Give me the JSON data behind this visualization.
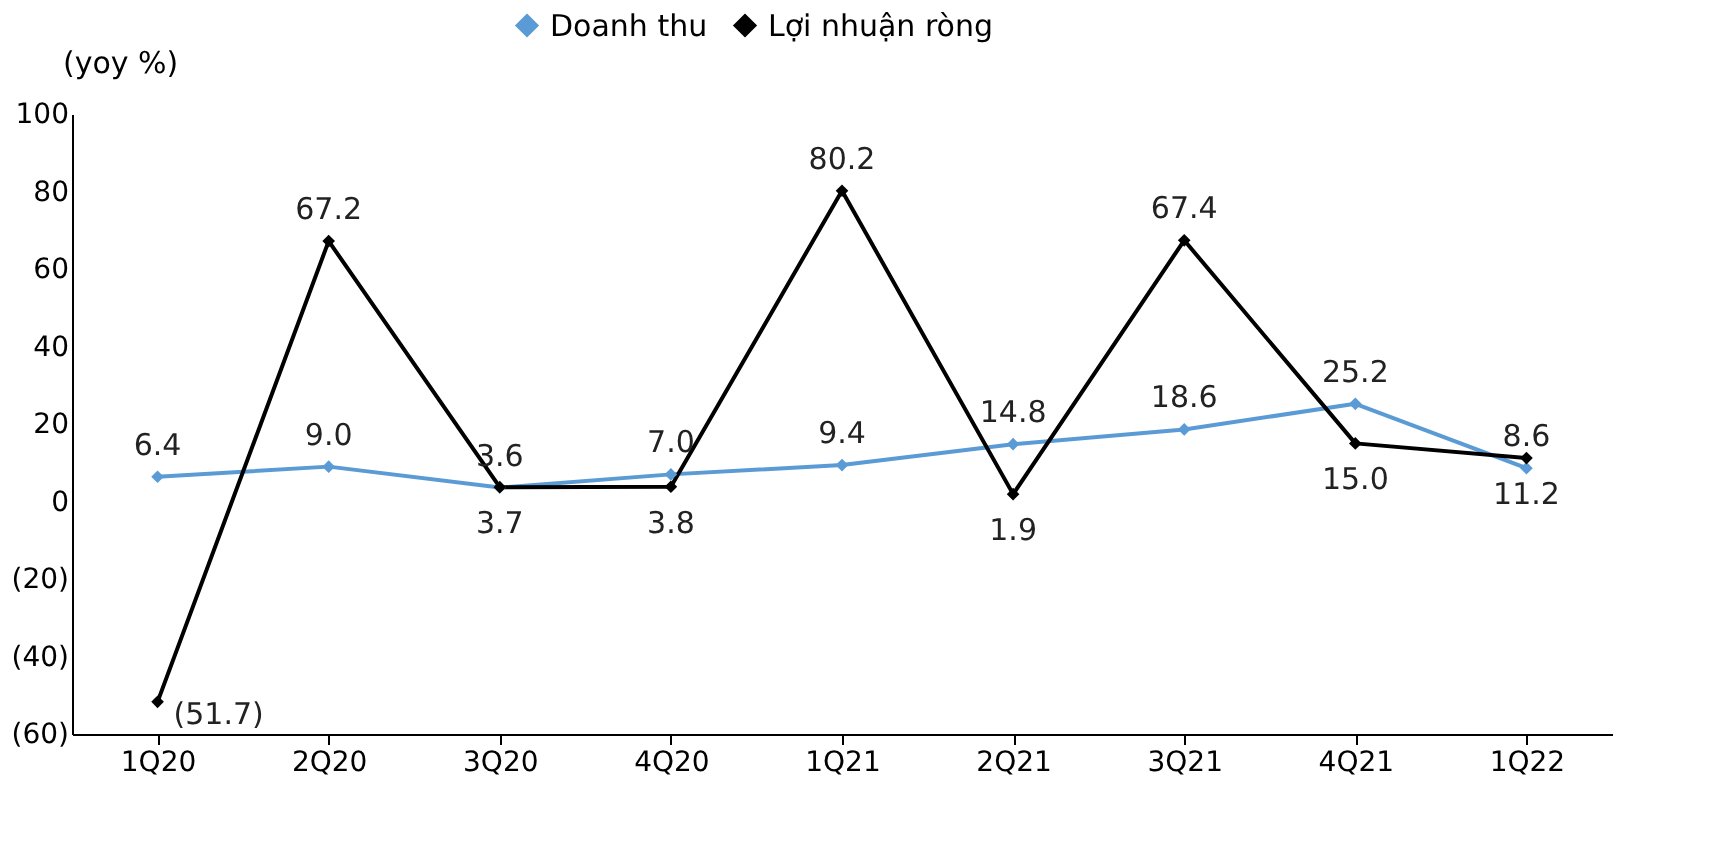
{
  "chart_data": {
    "type": "line",
    "ylabel": "(yoy %)",
    "categories": [
      "1Q20",
      "2Q20",
      "3Q20",
      "4Q20",
      "1Q21",
      "2Q21",
      "3Q21",
      "4Q21",
      "1Q22"
    ],
    "series": [
      {
        "name": "Doanh thu",
        "color": "#5b9bd5",
        "values": [
          6.4,
          9.0,
          3.6,
          7.0,
          9.4,
          14.8,
          18.6,
          25.2,
          8.6
        ],
        "value_labels": [
          "6.4",
          "9.0",
          "3.6",
          "7.0",
          "9.4",
          "14.8",
          "18.6",
          "25.2",
          "8.6"
        ]
      },
      {
        "name": "Lợi nhuận ròng",
        "color": "#000000",
        "values": [
          -51.7,
          67.2,
          3.7,
          3.8,
          80.2,
          1.9,
          67.4,
          15.0,
          11.2
        ],
        "value_labels": [
          "(51.7)",
          "67.2",
          "3.7",
          "3.8",
          "80.2",
          "1.9",
          "67.4",
          "15.0",
          "11.2"
        ]
      }
    ],
    "ylim": [
      -60,
      100
    ],
    "yticks": [
      {
        "value": -60,
        "label": "(60)"
      },
      {
        "value": -40,
        "label": "(40)"
      },
      {
        "value": -20,
        "label": "(20)"
      },
      0,
      20,
      40,
      60,
      80,
      100
    ],
    "grid": false,
    "legend": "top",
    "marker": "diamond",
    "line_style": "solid"
  }
}
